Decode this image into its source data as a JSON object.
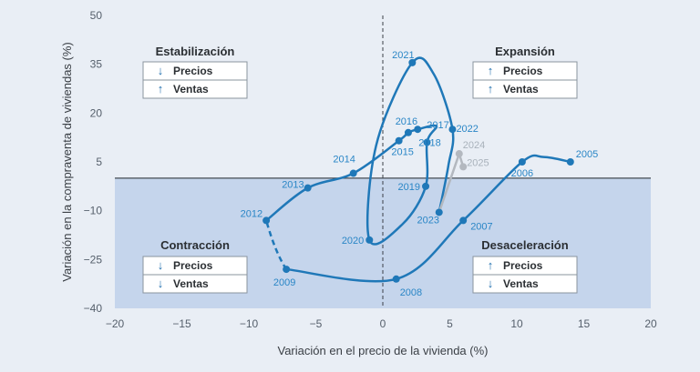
{
  "chart_data": {
    "type": "scatter",
    "xlabel": "Variación en el precio de la vivienda (%)",
    "ylabel": "Variación en la compraventa de viviendas (%)",
    "xlim": [
      -20,
      20
    ],
    "ylim": [
      -40,
      50
    ],
    "xticks": [
      -20,
      -15,
      -10,
      -5,
      0,
      5,
      10,
      15,
      20
    ],
    "yticks": [
      -40,
      -25,
      -10,
      5,
      20,
      35,
      50
    ],
    "x_tick_labels": [
      "−20",
      "−15",
      "−10",
      "−5",
      "0",
      "5",
      "10",
      "15",
      "20"
    ],
    "y_tick_labels": [
      "−40",
      "−25",
      "−10",
      "5",
      "20",
      "35",
      "50"
    ],
    "colors": {
      "series": "#1f78b8",
      "forecast": "#b3b8bf",
      "label": "#2a86c6",
      "forecast_label": "#a9b2bb",
      "lower_band": "#c5d5ec",
      "background": "#e9eef5"
    },
    "points": [
      {
        "year": "2005",
        "x": 14.0,
        "y": 5.0
      },
      {
        "year": "2006",
        "x": 10.4,
        "y": 5.0
      },
      {
        "year": "2007",
        "x": 6.0,
        "y": -13.0
      },
      {
        "year": "2008",
        "x": 1.0,
        "y": -31.0
      },
      {
        "year": "2009",
        "x": -7.2,
        "y": -28.0
      },
      {
        "year": "2012",
        "x": -8.7,
        "y": -13.0
      },
      {
        "year": "2013",
        "x": -5.6,
        "y": -3.0
      },
      {
        "year": "2014",
        "x": -2.2,
        "y": 1.5
      },
      {
        "year": "2015",
        "x": 1.2,
        "y": 11.5
      },
      {
        "year": "2016",
        "x": 1.9,
        "y": 14.0
      },
      {
        "year": "2017",
        "x": 2.6,
        "y": 15.0
      },
      {
        "year": "2018",
        "x": 3.3,
        "y": 11.0
      },
      {
        "year": "2019",
        "x": 3.2,
        "y": -2.5
      },
      {
        "year": "2020",
        "x": -1.0,
        "y": -19.0
      },
      {
        "year": "2021",
        "x": 2.2,
        "y": 35.5
      },
      {
        "year": "2022",
        "x": 5.2,
        "y": 15.0
      },
      {
        "year": "2023",
        "x": 4.2,
        "y": -10.5
      },
      {
        "year": "2024",
        "x": 5.7,
        "y": 7.5
      },
      {
        "year": "2025",
        "x": 6.0,
        "y": 3.5
      }
    ],
    "forecast_years": [
      "2024",
      "2025"
    ],
    "quadrants": [
      {
        "name": "Estabilización",
        "rows": [
          {
            "arrow": "↓",
            "text": "Precios"
          },
          {
            "arrow": "↑",
            "text": "Ventas"
          }
        ]
      },
      {
        "name": "Expansión",
        "rows": [
          {
            "arrow": "↑",
            "text": "Precios"
          },
          {
            "arrow": "↑",
            "text": "Ventas"
          }
        ]
      },
      {
        "name": "Contracción",
        "rows": [
          {
            "arrow": "↓",
            "text": "Precios"
          },
          {
            "arrow": "↓",
            "text": "Ventas"
          }
        ]
      },
      {
        "name": "Desaceleración",
        "rows": [
          {
            "arrow": "↑",
            "text": "Precios"
          },
          {
            "arrow": "↓",
            "text": "Ventas"
          }
        ]
      }
    ],
    "grid": false
  }
}
